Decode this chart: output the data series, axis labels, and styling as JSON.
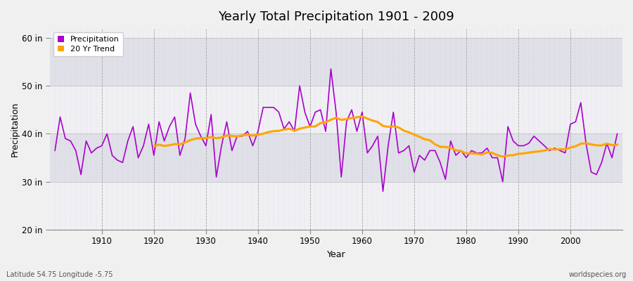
{
  "title": "Yearly Total Precipitation 1901 - 2009",
  "xlabel": "Year",
  "ylabel": "Precipitation",
  "subtitle": "Latitude 54.75 Longitude -5.75",
  "watermark": "worldspecies.org",
  "ylim": [
    20,
    62
  ],
  "yticks": [
    20,
    30,
    40,
    50,
    60
  ],
  "ytick_labels": [
    "20 in",
    "30 in",
    "40 in",
    "50 in",
    "60 in"
  ],
  "xlim": [
    1900,
    2010
  ],
  "xticks": [
    1910,
    1920,
    1930,
    1940,
    1950,
    1960,
    1970,
    1980,
    1990,
    2000
  ],
  "outer_bg": "#f0f0f0",
  "plot_bg_light": "#f0f0f4",
  "plot_bg_dark": "#e0e0e8",
  "grid_color": "#ffffff",
  "precip_color": "#aa00cc",
  "trend_color": "#ffa500",
  "legend_labels": [
    "Precipitation",
    "20 Yr Trend"
  ],
  "years": [
    1901,
    1902,
    1903,
    1904,
    1905,
    1906,
    1907,
    1908,
    1909,
    1910,
    1911,
    1912,
    1913,
    1914,
    1915,
    1916,
    1917,
    1918,
    1919,
    1920,
    1921,
    1922,
    1923,
    1924,
    1925,
    1926,
    1927,
    1928,
    1929,
    1930,
    1931,
    1932,
    1933,
    1934,
    1935,
    1936,
    1937,
    1938,
    1939,
    1940,
    1941,
    1942,
    1943,
    1944,
    1945,
    1946,
    1947,
    1948,
    1949,
    1950,
    1951,
    1952,
    1953,
    1954,
    1955,
    1956,
    1957,
    1958,
    1959,
    1960,
    1961,
    1962,
    1963,
    1964,
    1965,
    1966,
    1967,
    1968,
    1969,
    1970,
    1971,
    1972,
    1973,
    1974,
    1975,
    1976,
    1977,
    1978,
    1979,
    1980,
    1981,
    1982,
    1983,
    1984,
    1985,
    1986,
    1987,
    1988,
    1989,
    1990,
    1991,
    1992,
    1993,
    1994,
    1995,
    1996,
    1997,
    1998,
    1999,
    2000,
    2001,
    2002,
    2003,
    2004,
    2005,
    2006,
    2007,
    2008,
    2009
  ],
  "precip": [
    36.5,
    43.5,
    39.0,
    38.5,
    36.5,
    31.5,
    38.5,
    36.0,
    37.0,
    37.5,
    40.0,
    35.5,
    34.5,
    34.0,
    38.5,
    41.5,
    35.0,
    37.5,
    42.0,
    35.5,
    42.5,
    38.5,
    41.5,
    43.5,
    35.5,
    39.0,
    48.5,
    42.0,
    39.5,
    37.5,
    44.0,
    31.0,
    37.5,
    42.5,
    36.5,
    39.5,
    39.5,
    40.5,
    37.5,
    40.5,
    45.5,
    45.5,
    45.5,
    44.5,
    41.0,
    42.5,
    40.5,
    50.0,
    44.5,
    41.5,
    44.5,
    45.0,
    40.5,
    53.5,
    44.5,
    31.0,
    42.5,
    45.0,
    40.5,
    44.5,
    36.0,
    37.5,
    39.5,
    28.0,
    37.5,
    44.5,
    36.0,
    36.5,
    37.5,
    32.0,
    35.5,
    34.5,
    36.5,
    36.5,
    34.0,
    30.5,
    38.5,
    35.5,
    36.5,
    35.0,
    36.5,
    36.0,
    36.0,
    37.0,
    35.0,
    35.0,
    30.0,
    41.5,
    38.5,
    37.5,
    37.5,
    38.0,
    39.5,
    38.5,
    37.5,
    36.5,
    37.0,
    36.5,
    36.0,
    42.0,
    42.5,
    46.5,
    38.0,
    32.0,
    31.5,
    34.0,
    38.0,
    35.0,
    40.0
  ]
}
